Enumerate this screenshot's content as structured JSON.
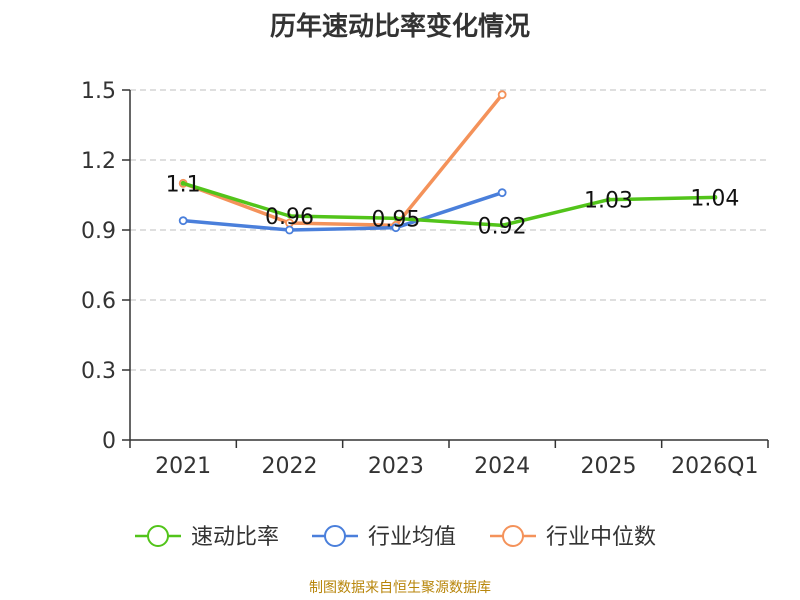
{
  "chart_data": {
    "type": "line",
    "title": "历年速动比率变化情况",
    "categories": [
      "2021",
      "2022",
      "2023",
      "2024",
      "2025",
      "2026Q1"
    ],
    "ylim": [
      0,
      1.5
    ],
    "yticks": [
      {
        "value": 0,
        "label": "0"
      },
      {
        "value": 0.3,
        "label": "0.3"
      },
      {
        "value": 0.6,
        "label": "0.6"
      },
      {
        "value": 0.9,
        "label": "0.9"
      },
      {
        "value": 1.2,
        "label": "1.2"
      },
      {
        "value": 1.5,
        "label": "1.5"
      }
    ],
    "grid": true,
    "legend_position": "bottom",
    "series": [
      {
        "name": "速动比率",
        "color": "#52c41a",
        "values": [
          1.1,
          0.96,
          0.95,
          0.92,
          1.03,
          1.04
        ],
        "labels": [
          "1.1",
          "0.96",
          "0.95",
          "0.92",
          "1.03",
          "1.04"
        ]
      },
      {
        "name": "行业均值",
        "color": "#4a7fdb",
        "values": [
          0.94,
          0.9,
          0.91,
          1.06,
          null,
          null
        ]
      },
      {
        "name": "行业中位数",
        "color": "#f4925a",
        "values": [
          1.1,
          0.93,
          0.92,
          1.48,
          null,
          null
        ]
      }
    ]
  },
  "footer": {
    "source": "制图数据来自恒生聚源数据库"
  }
}
